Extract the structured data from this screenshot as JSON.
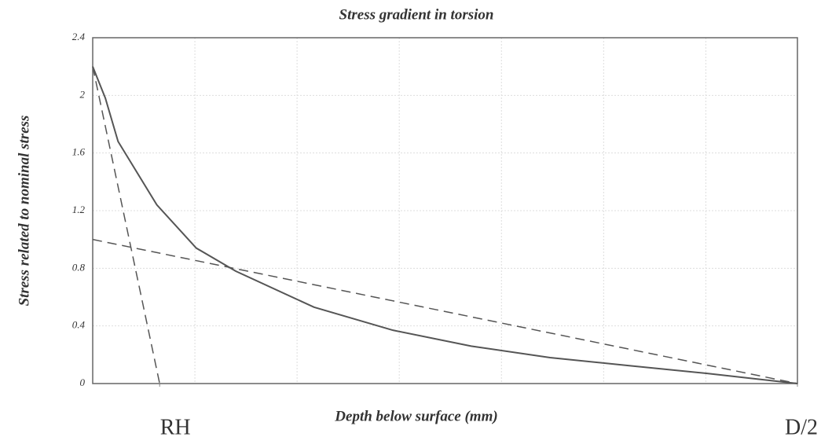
{
  "chart_data": {
    "type": "line",
    "title": "Stress gradient in torsion",
    "xlabel": "Depth below surface (mm)",
    "ylabel": "Stress related to nominal stress",
    "xlim": [
      0,
      1
    ],
    "ylim": [
      0,
      2.4
    ],
    "yticks": [
      0,
      0.4,
      0.8,
      1.2,
      1.6,
      2,
      2.4
    ],
    "xticks": [
      {
        "value": 0.095,
        "label": "RH"
      },
      {
        "value": 1,
        "label": "D/2"
      }
    ],
    "xgrid": [
      0.145,
      0.29,
      0.435,
      0.58,
      0.725,
      0.87
    ],
    "grid": true,
    "series": [
      {
        "color": "#555555",
        "dash": false,
        "x": [
          0,
          0.018,
          0.036,
          0.091,
          0.147,
          0.203,
          0.314,
          0.426,
          0.537,
          0.649,
          0.76,
          0.872,
          1
        ],
        "values": [
          2.2,
          1.98,
          1.68,
          1.24,
          0.94,
          0.78,
          0.53,
          0.37,
          0.26,
          0.18,
          0.125,
          0.07,
          0
        ]
      },
      {
        "color": "#555555",
        "dash": true,
        "x": [
          0,
          1
        ],
        "values": [
          1.0,
          0
        ]
      },
      {
        "color": "#555555",
        "dash": true,
        "x": [
          0,
          0.095
        ],
        "values": [
          2.2,
          0
        ]
      }
    ]
  }
}
